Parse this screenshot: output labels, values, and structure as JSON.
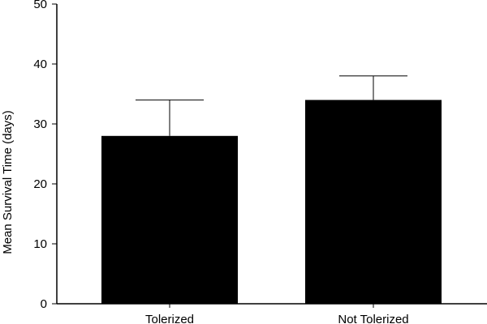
{
  "chart_data": {
    "type": "bar",
    "title": "",
    "xlabel": "",
    "ylabel": "Mean Survival Time (days)",
    "ylim": [
      0,
      50
    ],
    "yticks": [
      0,
      10,
      20,
      30,
      40,
      50
    ],
    "categories": [
      "Tolerized",
      "Not Tolerized"
    ],
    "values": [
      28,
      34
    ],
    "error_upper": [
      6,
      4
    ],
    "grid": false,
    "legend": "none",
    "bar_color": "#000000"
  }
}
